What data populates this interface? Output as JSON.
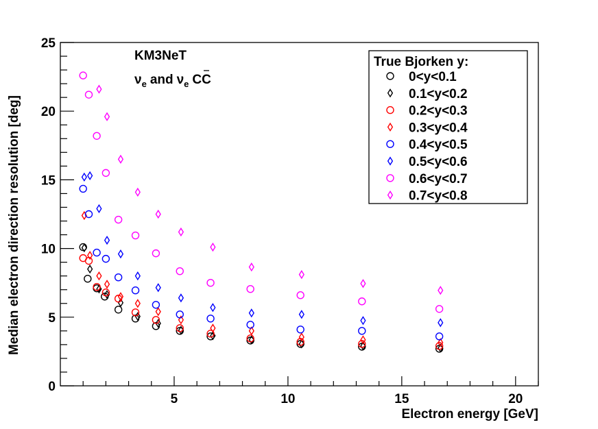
{
  "chart_data": {
    "type": "scatter",
    "title": "",
    "xlabel": "Electron energy [GeV]",
    "ylabel": "Median electron direction resolution [deg]",
    "xlim": [
      0,
      21
    ],
    "ylim": [
      0,
      25
    ],
    "xticks": [
      5,
      10,
      15,
      20
    ],
    "yticks": [
      0,
      5,
      10,
      15,
      20,
      25
    ],
    "grid": false,
    "annotations": {
      "experiment": "KM3NeT",
      "channel_nu": "ν",
      "channel_sub": "e",
      "channel_and": "and",
      "channel_nubar": "ν",
      "channel_sub2": "e",
      "channel_cc": "CC"
    },
    "legend": {
      "title": "True Bjorken y:",
      "position": "top-right"
    },
    "x": [
      1.12,
      1.41,
      1.78,
      2.24,
      2.82,
      3.55,
      4.47,
      5.62,
      7.08,
      8.91,
      11.2,
      14.1,
      17.8
    ],
    "series": [
      {
        "name": "0<y<0.1",
        "marker": "circle",
        "color": "#000000",
        "x": [
          1.0,
          1.2,
          1.6,
          1.95,
          2.55,
          3.3,
          4.2,
          5.25,
          6.6,
          8.35,
          10.55,
          13.25,
          16.65
        ],
        "values": [
          10.1,
          7.8,
          7.1,
          6.5,
          5.55,
          4.9,
          4.35,
          4.0,
          3.6,
          3.3,
          3.05,
          2.85,
          2.7
        ]
      },
      {
        "name": "0.1<y<0.2",
        "marker": "diamond",
        "color": "#000000",
        "x": [
          1.05,
          1.3,
          1.7,
          2.05,
          2.65,
          3.4,
          4.3,
          5.3,
          6.7,
          8.4,
          10.6,
          13.3,
          16.7
        ],
        "values": [
          10.05,
          8.5,
          7.05,
          6.65,
          6.05,
          5.05,
          4.55,
          4.05,
          3.65,
          3.35,
          3.05,
          2.9,
          2.75
        ]
      },
      {
        "name": "0.2<y<0.3",
        "marker": "circle",
        "color": "#ff0000",
        "x": [
          1.0,
          1.25,
          1.6,
          2.0,
          2.55,
          3.3,
          4.2,
          5.25,
          6.6,
          8.35,
          10.55,
          13.25,
          16.65
        ],
        "values": [
          9.3,
          9.1,
          7.2,
          6.8,
          6.35,
          5.35,
          4.8,
          4.2,
          3.8,
          3.45,
          3.2,
          3.05,
          2.9
        ]
      },
      {
        "name": "0.3<y<0.4",
        "marker": "diamond",
        "color": "#ff0000",
        "x": [
          1.05,
          1.3,
          1.7,
          2.05,
          2.65,
          3.4,
          4.3,
          5.3,
          6.7,
          8.4,
          10.6,
          13.3,
          16.7
        ],
        "values": [
          12.4,
          9.5,
          8.0,
          7.4,
          6.5,
          6.0,
          5.4,
          4.8,
          4.2,
          4.0,
          3.55,
          3.35,
          3.15
        ]
      },
      {
        "name": "0.4<y<0.5",
        "marker": "circle",
        "color": "#0000ff",
        "x": [
          1.0,
          1.25,
          1.6,
          2.0,
          2.55,
          3.3,
          4.2,
          5.25,
          6.6,
          8.35,
          10.55,
          13.25,
          16.65
        ],
        "values": [
          14.35,
          12.5,
          9.7,
          9.25,
          7.9,
          6.95,
          5.9,
          5.2,
          4.9,
          4.45,
          4.1,
          4.0,
          3.6
        ]
      },
      {
        "name": "0.5<y<0.6",
        "marker": "diamond",
        "color": "#0000ff",
        "x": [
          1.05,
          1.3,
          1.7,
          2.05,
          2.65,
          3.4,
          4.3,
          5.3,
          6.7,
          8.4,
          10.6,
          13.3,
          16.7
        ],
        "values": [
          15.2,
          15.3,
          12.9,
          10.6,
          9.6,
          8.0,
          7.15,
          6.4,
          5.7,
          5.3,
          5.2,
          4.75,
          4.6
        ]
      },
      {
        "name": "0.6<y<0.7",
        "marker": "circle",
        "color": "#ff00ff",
        "x": [
          1.0,
          1.25,
          1.6,
          2.0,
          2.55,
          3.3,
          4.2,
          5.25,
          6.6,
          8.35,
          10.55,
          13.25,
          16.65
        ],
        "values": [
          22.6,
          21.2,
          18.2,
          15.5,
          12.1,
          10.95,
          9.65,
          8.35,
          7.5,
          7.05,
          6.6,
          6.15,
          5.6
        ]
      },
      {
        "name": "0.7<y<0.8",
        "marker": "diamond",
        "color": "#ff00ff",
        "x": [
          1.05,
          1.3,
          1.7,
          2.05,
          2.65,
          3.4,
          4.3,
          5.3,
          6.7,
          8.4,
          10.6,
          13.3,
          16.7
        ],
        "values": [
          null,
          null,
          21.6,
          19.6,
          16.5,
          14.1,
          12.5,
          11.2,
          10.1,
          8.65,
          8.1,
          7.45,
          6.95
        ]
      }
    ]
  }
}
